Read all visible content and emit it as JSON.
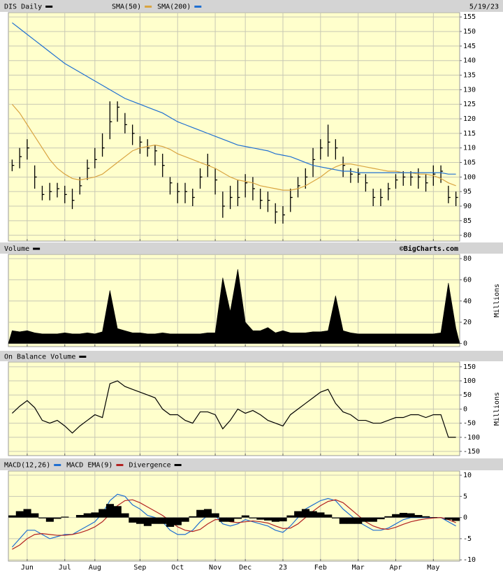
{
  "chart_data": [
    {
      "type": "ohlc",
      "date": "5/19/23",
      "ylim": [
        78,
        156.5
      ],
      "yticks": [
        80,
        85,
        90,
        95,
        100,
        105,
        110,
        115,
        120,
        125,
        130,
        135,
        140,
        145,
        150,
        155
      ],
      "grid": true,
      "series": [
        {
          "name": "DIS Daily",
          "color": "#000000",
          "high": [
            106,
            110,
            113,
            104,
            97,
            98,
            98,
            97,
            96,
            100,
            106,
            110,
            115,
            126,
            126,
            122,
            118,
            114,
            113,
            111,
            108,
            100,
            98,
            98,
            96,
            103,
            108,
            103,
            95,
            97,
            99,
            101,
            100,
            96,
            95,
            91,
            90,
            96,
            100,
            103,
            110,
            113,
            118,
            113,
            107,
            103,
            103,
            101,
            96,
            96,
            98,
            101,
            102,
            102,
            103,
            101,
            104,
            104,
            97,
            95
          ],
          "low": [
            102,
            103,
            106,
            96,
            92,
            92,
            93,
            91,
            89,
            94,
            99,
            103,
            107,
            113,
            119,
            115,
            111,
            108,
            107,
            104,
            100,
            94,
            91,
            91,
            90,
            96,
            100,
            94,
            86,
            89,
            90,
            93,
            92,
            89,
            88,
            84,
            84,
            88,
            93,
            96,
            100,
            106,
            107,
            106,
            100,
            98,
            98,
            95,
            90,
            90,
            92,
            96,
            97,
            97,
            96,
            95,
            97,
            98,
            91,
            90
          ],
          "values": [
            104,
            107,
            110,
            100,
            94,
            95,
            96,
            94,
            92,
            97,
            103,
            106,
            110,
            119,
            124,
            118,
            115,
            112,
            110,
            109,
            104,
            98,
            95,
            95,
            93,
            100,
            104,
            99,
            90,
            93,
            93,
            98,
            96,
            92,
            92,
            88,
            87,
            93,
            97,
            100,
            106,
            110,
            112,
            110,
            104,
            101,
            101,
            98,
            93,
            93,
            96,
            99,
            100,
            100,
            100,
            98,
            101,
            102,
            93,
            93
          ]
        },
        {
          "name": "SMA(50)",
          "color": "#d9a441",
          "values": [
            125,
            122,
            118,
            114,
            110,
            106,
            103,
            101,
            99.5,
            99,
            99.5,
            100,
            101,
            103,
            105,
            107,
            109,
            110,
            110.5,
            111,
            110.5,
            109.5,
            108,
            107,
            106,
            105,
            104,
            103,
            101.5,
            100,
            99,
            98.5,
            98,
            97,
            96.5,
            96,
            95.5,
            95.5,
            96,
            97,
            98.5,
            100,
            102,
            103.5,
            104.5,
            104.5,
            104,
            103.5,
            103,
            102.5,
            102,
            102,
            101.5,
            101.5,
            101,
            101,
            100.5,
            99.5,
            98,
            97
          ]
        },
        {
          "name": "SMA(200)",
          "color": "#1f6fd1",
          "values": [
            153,
            151,
            149,
            147,
            145,
            143,
            141,
            139,
            137.5,
            136,
            134.5,
            133,
            131.5,
            130,
            128.5,
            127,
            126,
            125,
            124,
            123,
            122,
            120.5,
            119,
            118,
            117,
            116,
            115,
            114,
            113,
            112,
            111,
            110.5,
            110,
            109.5,
            109,
            108,
            107.5,
            107,
            106,
            105,
            104,
            103.5,
            103,
            102.5,
            102,
            102,
            101.5,
            101.5,
            101.5,
            101.5,
            101.5,
            101.5,
            101.5,
            101.5,
            101.5,
            101.5,
            101.5,
            101.5,
            101,
            101
          ]
        }
      ]
    },
    {
      "type": "area",
      "copyright": "©BigCharts.com",
      "y_label": "Millions",
      "ylim": [
        -3,
        84
      ],
      "yticks": [
        0,
        20,
        40,
        60,
        80
      ],
      "grid": true,
      "series": [
        {
          "name": "Volume",
          "color": "#000000",
          "values": [
            12,
            11,
            12,
            10,
            9,
            9,
            9,
            10,
            9,
            9,
            10,
            9,
            11,
            50,
            14,
            12,
            10,
            10,
            9,
            9,
            10,
            9,
            9,
            9,
            9,
            9,
            10,
            10,
            62,
            30,
            70,
            20,
            12,
            12,
            15,
            10,
            12,
            10,
            10,
            10,
            11,
            11,
            12,
            45,
            12,
            10,
            9,
            9,
            9,
            9,
            9,
            9,
            9,
            9,
            9,
            9,
            9,
            10,
            57,
            14
          ]
        }
      ]
    },
    {
      "type": "line",
      "y_label": "Millions",
      "ylim": [
        -165,
        167
      ],
      "yticks": [
        -150,
        -100,
        -50,
        0,
        50,
        100,
        150
      ],
      "grid": true,
      "series": [
        {
          "name": "On Balance Volume",
          "color": "#000000",
          "values": [
            -15,
            10,
            30,
            5,
            -40,
            -50,
            -40,
            -60,
            -85,
            -60,
            -40,
            -20,
            -30,
            90,
            100,
            80,
            70,
            60,
            50,
            40,
            0,
            -20,
            -20,
            -40,
            -50,
            -10,
            -10,
            -20,
            -70,
            -40,
            0,
            -15,
            -5,
            -20,
            -40,
            -50,
            -60,
            -20,
            0,
            20,
            40,
            60,
            70,
            20,
            -10,
            -20,
            -40,
            -40,
            -50,
            -50,
            -40,
            -30,
            -30,
            -20,
            -20,
            -30,
            -20,
            -20,
            -100,
            -100
          ]
        }
      ]
    },
    {
      "type": "line",
      "ylim": [
        -10.3,
        11
      ],
      "yticks": [
        -10,
        -5,
        0,
        5,
        10
      ],
      "grid": true,
      "categories": [
        null,
        null,
        "Jun",
        null,
        null,
        null,
        null,
        "Jul",
        null,
        null,
        null,
        "Aug",
        null,
        null,
        null,
        null,
        null,
        "Sep",
        null,
        null,
        null,
        null,
        "Oct",
        null,
        null,
        null,
        null,
        "Nov",
        null,
        null,
        null,
        "Dec",
        null,
        null,
        null,
        null,
        "23",
        null,
        null,
        null,
        null,
        "Feb",
        null,
        null,
        null,
        null,
        "Mar",
        null,
        null,
        null,
        null,
        "Apr",
        null,
        null,
        null,
        null,
        "May",
        null,
        null,
        null
      ],
      "series": [
        {
          "name": "MACD(12,26)",
          "color": "#1f6fd1",
          "values": [
            -7,
            -5,
            -3,
            -3,
            -4,
            -5,
            -4.5,
            -4,
            -4,
            -3,
            -2,
            -1,
            1,
            4,
            5.5,
            5,
            3,
            2,
            0.5,
            0,
            -1,
            -3,
            -4,
            -4,
            -3,
            -1,
            0.5,
            0.5,
            -1.5,
            -2,
            -1.5,
            -0.5,
            -1,
            -1.5,
            -2,
            -3,
            -3.5,
            -2,
            0,
            2,
            3,
            4,
            4.5,
            4,
            2,
            0.5,
            -1,
            -2,
            -3,
            -3,
            -2.5,
            -1.5,
            -0.5,
            0,
            0,
            0,
            0,
            0,
            -1,
            -2
          ]
        },
        {
          "name": "MACD EMA(9)",
          "color": "#b22222",
          "values": [
            -7.5,
            -6.5,
            -5,
            -4,
            -3.8,
            -4,
            -4.2,
            -4.2,
            -4,
            -3.6,
            -3,
            -2.2,
            -1,
            0.8,
            2.8,
            4,
            4.2,
            3.5,
            2.5,
            1.5,
            0.5,
            -0.8,
            -2.2,
            -3,
            -3.3,
            -2.8,
            -1.5,
            -0.5,
            -0.5,
            -1,
            -1.2,
            -1,
            -0.8,
            -1,
            -1.3,
            -2,
            -2.6,
            -2.5,
            -1.5,
            0,
            1.5,
            2.8,
            3.8,
            4.2,
            3.5,
            2,
            0.5,
            -1,
            -2,
            -2.6,
            -2.8,
            -2.3,
            -1.6,
            -1,
            -0.6,
            -0.3,
            -0.1,
            0,
            -0.5,
            -1.2
          ]
        },
        {
          "name": "Divergence",
          "color": "#000000",
          "style": "histogram",
          "values": [
            0.5,
            1.5,
            2,
            1,
            -0.2,
            -1,
            -0.3,
            0.2,
            0,
            0.6,
            1,
            1.2,
            2,
            3.2,
            2.7,
            1,
            -1.2,
            -1.5,
            -2,
            -1.5,
            -1.5,
            -2.2,
            -1.8,
            -1,
            0.3,
            1.8,
            2,
            1,
            -1,
            -1,
            -0.3,
            0.5,
            -0.2,
            -0.5,
            -0.7,
            -1,
            -0.9,
            0.5,
            1.5,
            2,
            1.5,
            1.2,
            0.7,
            -0.2,
            -1.5,
            -1.5,
            -1.5,
            -1,
            -1,
            -0.4,
            0.3,
            0.8,
            1.1,
            1,
            0.6,
            0.3,
            0.1,
            0,
            -0.5,
            -0.8
          ]
        }
      ]
    }
  ]
}
